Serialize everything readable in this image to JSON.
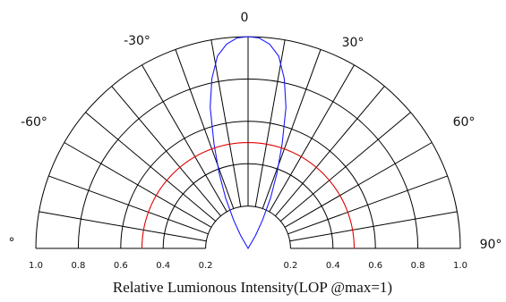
{
  "chart_data": {
    "type": "polar",
    "xlabel": "Relative Lumionous Intensity(LOP @max=1)",
    "angle_labels": [
      {
        "angle": 0,
        "text": "0"
      },
      {
        "angle": -30,
        "text": "-30°"
      },
      {
        "angle": 30,
        "text": "30°"
      },
      {
        "angle": -60,
        "text": "-60°"
      },
      {
        "angle": 60,
        "text": "60°"
      },
      {
        "angle": -90,
        "text": "°"
      },
      {
        "angle": 90,
        "text": "90°"
      }
    ],
    "radial_ticks_left": [
      "1.0",
      "0.8",
      "0.6",
      "0.4",
      "0.2"
    ],
    "radial_ticks_right": [
      "0.2",
      "0.4",
      "0.6",
      "0.8",
      "1.0"
    ],
    "radial_tick_values_left": [
      1.0,
      0.8,
      0.6,
      0.4,
      0.2
    ],
    "radial_tick_values_right": [
      0.2,
      0.4,
      0.6,
      0.8,
      1.0
    ],
    "angle_range": [
      -90,
      90
    ],
    "radius_range": [
      0,
      1
    ],
    "spoke_step_deg": 10,
    "grid": true,
    "series": [
      {
        "color": "#1a1aff",
        "points": [
          {
            "angle": -30,
            "r": 0.07
          },
          {
            "angle": -27,
            "r": 0.15
          },
          {
            "angle": -24,
            "r": 0.26
          },
          {
            "angle": -21,
            "r": 0.38
          },
          {
            "angle": -18,
            "r": 0.52
          },
          {
            "angle": -15,
            "r": 0.69
          },
          {
            "angle": -12,
            "r": 0.82
          },
          {
            "angle": -9,
            "r": 0.92
          },
          {
            "angle": -6,
            "r": 0.97
          },
          {
            "angle": -3,
            "r": 0.995
          },
          {
            "angle": 0,
            "r": 1.0
          },
          {
            "angle": 3,
            "r": 0.995
          },
          {
            "angle": 6,
            "r": 0.97
          },
          {
            "angle": 9,
            "r": 0.92
          },
          {
            "angle": 12,
            "r": 0.82
          },
          {
            "angle": 15,
            "r": 0.69
          },
          {
            "angle": 18,
            "r": 0.52
          },
          {
            "angle": 21,
            "r": 0.38
          },
          {
            "angle": 24,
            "r": 0.26
          },
          {
            "angle": 27,
            "r": 0.15
          },
          {
            "angle": 30,
            "r": 0.07
          }
        ]
      },
      {
        "color": "#e00000",
        "points": [
          {
            "angle": -90,
            "r": 0.5
          },
          {
            "angle": 90,
            "r": 0.5
          }
        ]
      }
    ]
  }
}
